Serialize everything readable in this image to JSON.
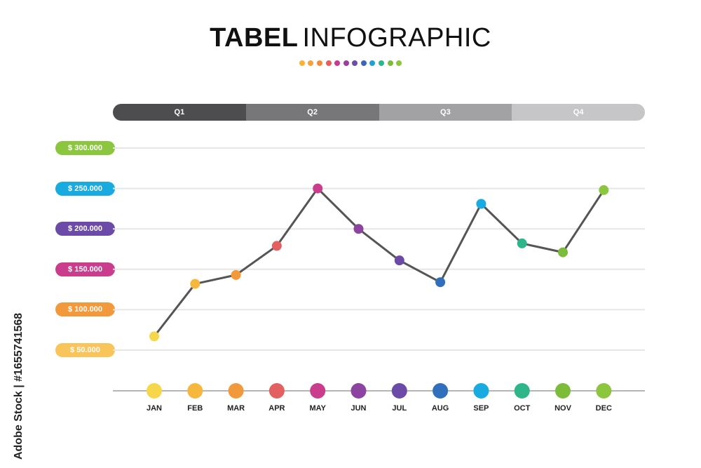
{
  "header": {
    "title_bold": "TABEL",
    "title_light": "INFOGRAPHIC",
    "dot_colors": [
      "#f9b233",
      "#f7a13a",
      "#f28b3c",
      "#e85c5c",
      "#c63a8f",
      "#9b3f9d",
      "#6b4fa8",
      "#3d66b5",
      "#1fa0d8",
      "#2fb58a",
      "#7dbb3a",
      "#8cc63f"
    ]
  },
  "quarters": [
    {
      "label": "Q1",
      "color": "#4d4d4f"
    },
    {
      "label": "Q2",
      "color": "#77777a"
    },
    {
      "label": "Q3",
      "color": "#a2a2a5"
    },
    {
      "label": "Q4",
      "color": "#c6c6c9"
    }
  ],
  "watermark": "Adobe Stock | #1655741568",
  "chart_data": {
    "type": "line",
    "categories": [
      "JAN",
      "FEB",
      "MAR",
      "APR",
      "MAY",
      "JUN",
      "JUL",
      "AUG",
      "SEP",
      "OCT",
      "NOV",
      "DEC"
    ],
    "values": [
      67000,
      132000,
      143000,
      179000,
      250000,
      200000,
      161000,
      134000,
      231000,
      182000,
      171000,
      248000
    ],
    "point_colors": [
      "#f6d74b",
      "#f5b83d",
      "#f29a3b",
      "#e36060",
      "#c93d8c",
      "#8c44a1",
      "#6b4ba7",
      "#2f6fbb",
      "#19aadf",
      "#2fb58a",
      "#7dbb3a",
      "#8cc63f"
    ],
    "ylim": [
      0,
      300000
    ],
    "y_ticks": [
      {
        "value": 300000,
        "label": "$ 300.000",
        "color": "#8cc63f"
      },
      {
        "value": 250000,
        "label": "$ 250.000",
        "color": "#19aadf"
      },
      {
        "value": 200000,
        "label": "$ 200.000",
        "color": "#6b4ba7"
      },
      {
        "value": 150000,
        "label": "$ 150.000",
        "color": "#c93d8c"
      },
      {
        "value": 100000,
        "label": "$ 100.000",
        "color": "#f29a3b"
      },
      {
        "value": 50000,
        "label": "$ 50.000",
        "color": "#f9c55b"
      }
    ],
    "line_color": "#555555",
    "grid": true
  }
}
